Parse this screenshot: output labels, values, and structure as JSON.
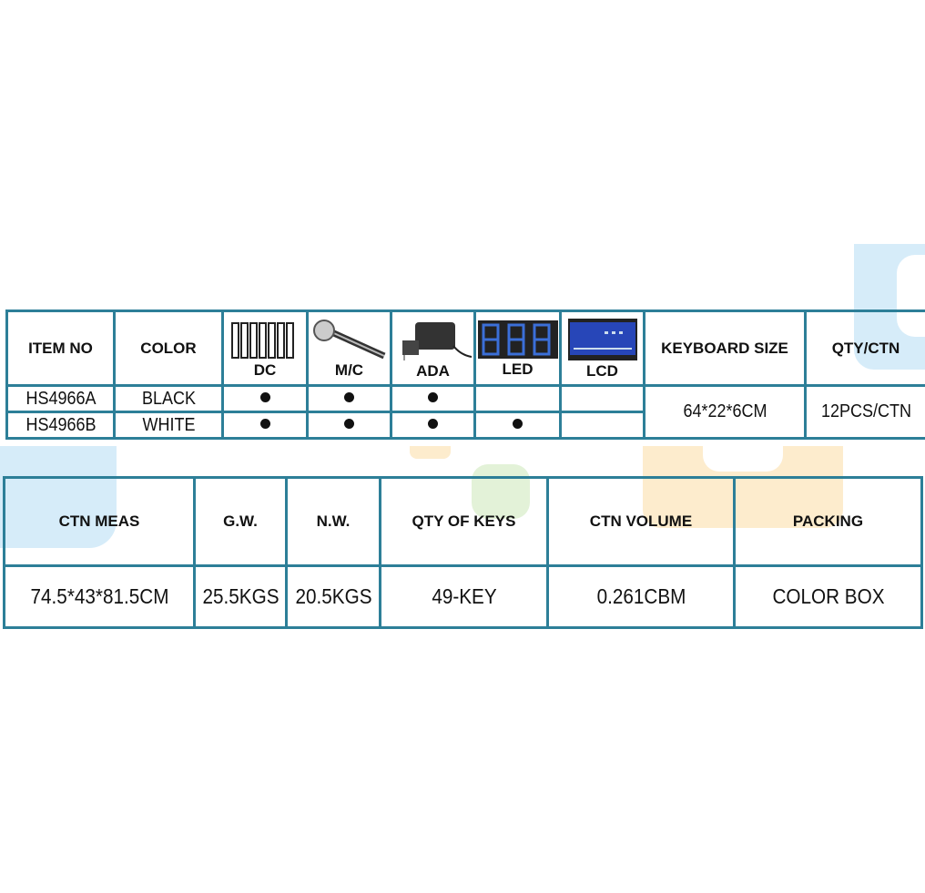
{
  "spec_table": {
    "headers": {
      "item_no": "ITEM NO",
      "color": "COLOR",
      "dc": "DC",
      "mc": "M/C",
      "ada": "ADA",
      "led": "LED",
      "lcd": "LCD",
      "keyboard_size": "KEYBOARD SIZE",
      "qty_ctn": "QTY/CTN"
    },
    "header_icons": [
      "batteries-icon",
      "microphone-icon",
      "adapter-icon",
      "led-display-icon",
      "lcd-display-icon"
    ],
    "rows": [
      {
        "item_no": "HS4966A",
        "color": "BLACK",
        "dc": true,
        "mc": true,
        "ada": true,
        "led": false,
        "lcd": false
      },
      {
        "item_no": "HS4966B",
        "color": "WHITE",
        "dc": true,
        "mc": true,
        "ada": true,
        "led": true,
        "lcd": false
      }
    ],
    "keyboard_size": "64*22*6CM",
    "qty_ctn": "12PCS/CTN"
  },
  "carton_table": {
    "headers": [
      "CTN MEAS",
      "G.W.",
      "N.W.",
      "QTY OF KEYS",
      "CTN VOLUME",
      "PACKING"
    ],
    "values": [
      "74.5*43*81.5CM",
      "25.5KGS",
      "20.5KGS",
      "49-KEY",
      "0.261CBM",
      "COLOR BOX"
    ]
  },
  "colors": {
    "border": "#2d7f98",
    "marker": "#111111"
  }
}
